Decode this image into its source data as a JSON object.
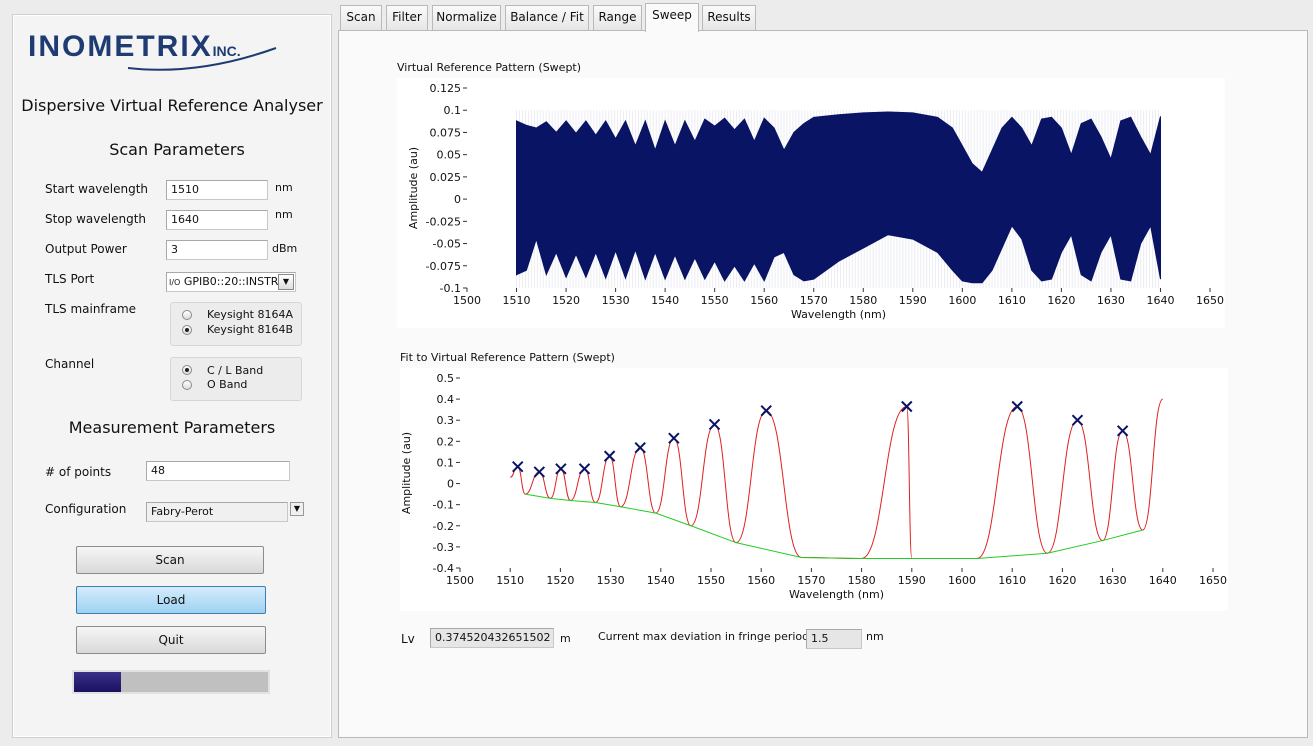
{
  "app": {
    "logo_text": "INOMETRIX",
    "logo_suffix": "INC.",
    "title": "Dispersive Virtual Reference Analyser"
  },
  "scan_params": {
    "heading": "Scan Parameters",
    "start_label": "Start wavelength",
    "start_value": "1510",
    "start_unit": "nm",
    "stop_label": "Stop wavelength",
    "stop_value": "1640",
    "stop_unit": "nm",
    "power_label": "Output Power",
    "power_value": "3",
    "power_unit": "dBm",
    "port_label": "TLS Port",
    "port_value": "GPIB0::20::INSTR",
    "port_prefix": "I/O",
    "mainframe_label": "TLS mainframe",
    "mainframe_options": [
      "Keysight 8164A",
      "Keysight 8164B"
    ],
    "mainframe_selected": 1,
    "channel_label": "Channel",
    "channel_options": [
      "C / L Band",
      "O Band"
    ],
    "channel_selected": 0
  },
  "meas_params": {
    "heading": "Measurement Parameters",
    "points_label": "# of points",
    "points_value": "48",
    "config_label": "Configuration",
    "config_value": "Fabry-Perot"
  },
  "buttons": {
    "scan": "Scan",
    "load": "Load",
    "quit": "Quit"
  },
  "progress": 0.24,
  "tabs": [
    "Scan",
    "Filter",
    "Normalize",
    "Balance / Fit",
    "Range",
    "Sweep",
    "Results"
  ],
  "selected_tab": "Sweep",
  "results": {
    "lv_label": "Lv",
    "lv_value": "0.374520432651502",
    "lv_unit": "m",
    "dev_label": "Current max deviation in fringe period",
    "dev_value": "1.5",
    "dev_unit": "nm"
  },
  "chart_data": [
    {
      "type": "area",
      "title": "Virtual Reference Pattern (Swept)",
      "xlabel": "Wavelength (nm)",
      "ylabel": "Amplitude (au)",
      "xlim": [
        1500,
        1650
      ],
      "ylim": [
        -0.1,
        0.125
      ],
      "xticks": [
        1500,
        1510,
        1520,
        1530,
        1540,
        1550,
        1560,
        1570,
        1580,
        1590,
        1600,
        1610,
        1620,
        1630,
        1640,
        1650
      ],
      "yticks": [
        "0.125",
        "0.1",
        "0.075",
        "0.05",
        "0.025",
        "0",
        "-0.025",
        "-0.05",
        "-0.075",
        "-0.1"
      ],
      "color": "#0a1464",
      "series": [
        {
          "x": [
            1510,
            1512,
            1514,
            1516,
            1518,
            1520,
            1522,
            1524,
            1526,
            1528,
            1530,
            1532,
            1534,
            1536,
            1538,
            1540,
            1542,
            1544,
            1546,
            1548,
            1550,
            1552,
            1554,
            1556,
            1558,
            1560,
            1562,
            1564,
            1566,
            1568,
            1570,
            1575,
            1580,
            1585,
            1590,
            1595,
            1598,
            1600,
            1602,
            1604,
            1606,
            1608,
            1610,
            1612,
            1614,
            1616,
            1618,
            1620,
            1622,
            1624,
            1626,
            1628,
            1630,
            1632,
            1634,
            1636,
            1638,
            1640
          ],
          "upper": [
            0.088,
            0.083,
            0.08,
            0.087,
            0.075,
            0.088,
            0.074,
            0.088,
            0.072,
            0.088,
            0.068,
            0.088,
            0.06,
            0.088,
            0.055,
            0.088,
            0.06,
            0.088,
            0.065,
            0.09,
            0.082,
            0.091,
            0.078,
            0.09,
            0.065,
            0.091,
            0.08,
            0.055,
            0.075,
            0.085,
            0.092,
            0.095,
            0.097,
            0.098,
            0.097,
            0.092,
            0.08,
            0.06,
            0.04,
            0.03,
            0.055,
            0.08,
            0.092,
            0.08,
            0.06,
            0.09,
            0.092,
            0.08,
            0.05,
            0.085,
            0.09,
            0.07,
            0.045,
            0.088,
            0.092,
            0.07,
            0.05,
            0.093
          ],
          "lower": [
            -0.085,
            -0.08,
            -0.045,
            -0.085,
            -0.06,
            -0.088,
            -0.062,
            -0.088,
            -0.06,
            -0.089,
            -0.058,
            -0.089,
            -0.057,
            -0.09,
            -0.06,
            -0.09,
            -0.063,
            -0.09,
            -0.066,
            -0.09,
            -0.07,
            -0.092,
            -0.075,
            -0.092,
            -0.072,
            -0.092,
            -0.065,
            -0.06,
            -0.085,
            -0.092,
            -0.09,
            -0.07,
            -0.055,
            -0.04,
            -0.045,
            -0.06,
            -0.08,
            -0.092,
            -0.094,
            -0.094,
            -0.08,
            -0.055,
            -0.03,
            -0.045,
            -0.08,
            -0.092,
            -0.09,
            -0.06,
            -0.04,
            -0.085,
            -0.092,
            -0.06,
            -0.04,
            -0.09,
            -0.092,
            -0.05,
            -0.03,
            -0.09
          ]
        }
      ]
    },
    {
      "type": "line",
      "title": "Fit to Virtual Reference Pattern (Swept)",
      "xlabel": "Wavelength (nm)",
      "ylabel": "Amplitude (au)",
      "xlim": [
        1500,
        1650
      ],
      "ylim": [
        -0.4,
        0.5
      ],
      "xticks": [
        1500,
        1510,
        1520,
        1530,
        1540,
        1550,
        1560,
        1570,
        1580,
        1590,
        1600,
        1610,
        1620,
        1630,
        1640,
        1650
      ],
      "yticks": [
        "0.5",
        "0.4",
        "0.3",
        "0.2",
        "0.1",
        "0",
        "-0.1",
        "-0.2",
        "-0.3",
        "-0.4"
      ],
      "peaks": {
        "color": "#0a1464",
        "x": [
          1511.5,
          1515.8,
          1520.1,
          1524.8,
          1529.8,
          1535.9,
          1542.6,
          1550.7,
          1561.0,
          1589.0,
          1611.0,
          1623.0,
          1632.0
        ],
        "y": [
          0.08,
          0.055,
          0.07,
          0.07,
          0.13,
          0.17,
          0.215,
          0.28,
          0.345,
          0.365,
          0.365,
          0.3,
          0.25
        ]
      },
      "troughs": {
        "color": "#22cc22",
        "x": [
          1513,
          1518,
          1522,
          1527,
          1532,
          1539,
          1546,
          1555,
          1568,
          1580,
          1590,
          1603,
          1617,
          1628,
          1636
        ],
        "y": [
          -0.05,
          -0.07,
          -0.08,
          -0.09,
          -0.11,
          -0.14,
          -0.2,
          -0.28,
          -0.35,
          -0.355,
          -0.355,
          -0.355,
          -0.33,
          -0.27,
          -0.22
        ]
      },
      "fit_color": "#e02020"
    }
  ]
}
